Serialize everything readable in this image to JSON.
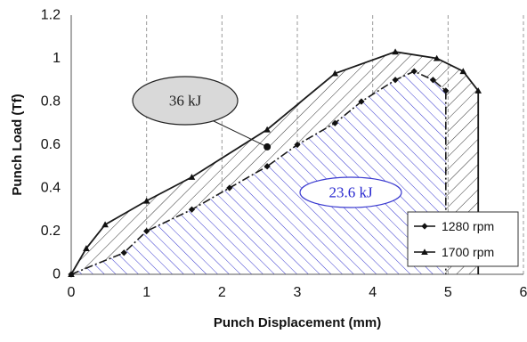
{
  "chart_data": {
    "type": "line",
    "title": "",
    "xlabel": "Punch Displacement (mm)",
    "ylabel": "Punch Load (Tf)",
    "xlim": [
      0,
      6
    ],
    "ylim": [
      0,
      1.2
    ],
    "x_ticks": [
      0,
      1,
      2,
      3,
      4,
      5,
      6
    ],
    "y_ticks": [
      0,
      0.2,
      0.4,
      0.6,
      0.8,
      1,
      1.2
    ],
    "x_tick_labels": [
      "0",
      "1",
      "2",
      "3",
      "4",
      "5",
      "6"
    ],
    "y_tick_labels": [
      "0",
      "0.2",
      "0.4",
      "0.6",
      "0.8",
      "1",
      "1.2"
    ],
    "grid": {
      "vertical": true,
      "horizontal": false,
      "style": "dashed"
    },
    "legend_position": "bottom-right",
    "series": [
      {
        "name": "1280 rpm",
        "marker": "diamond",
        "line_style": "dash-dot",
        "hatch_color": "#3a3ad0",
        "x": [
          0,
          0.7,
          1.0,
          1.6,
          2.1,
          2.6,
          3.0,
          3.5,
          3.85,
          4.3,
          4.55,
          4.8,
          4.97,
          4.97
        ],
        "y": [
          0,
          0.1,
          0.2,
          0.3,
          0.4,
          0.5,
          0.6,
          0.7,
          0.8,
          0.9,
          0.94,
          0.9,
          0.85,
          0
        ]
      },
      {
        "name": "1700 rpm",
        "marker": "triangle",
        "line_style": "solid",
        "hatch_color": "#333333",
        "x": [
          0,
          0.2,
          0.45,
          1.0,
          1.6,
          2.6,
          3.5,
          4.3,
          4.85,
          5.2,
          5.4,
          5.4
        ],
        "y": [
          0,
          0.12,
          0.23,
          0.34,
          0.45,
          0.67,
          0.93,
          1.03,
          1.0,
          0.94,
          0.85,
          0
        ]
      }
    ],
    "annotations": [
      {
        "text": "36 kJ",
        "shape": "ellipse",
        "fill": "#d9d9d9",
        "text_color": "#222222",
        "anchor_point": [
          2.6,
          0.59
        ]
      },
      {
        "text": "23.6 kJ",
        "shape": "ellipse",
        "fill": "#ffffff",
        "text_color": "#2b2bd0"
      }
    ]
  }
}
